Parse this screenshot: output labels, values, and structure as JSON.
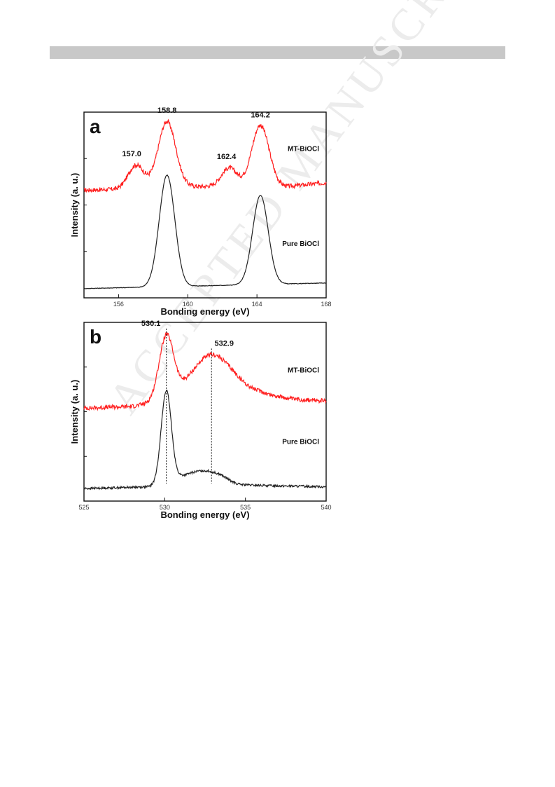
{
  "watermark": "ACCEPTED MANUSCRIPT",
  "chart_data": [
    {
      "panel_label": "a",
      "type": "line",
      "xlabel": "Bonding energy (eV)",
      "ylabel": "Intensity (a. u.)",
      "xlim": [
        154,
        168
      ],
      "xticks": [
        156,
        160,
        164,
        168
      ],
      "grid": false,
      "series": [
        {
          "name": "MT-BiOCl",
          "color": "#ff2020",
          "noise": 0.012,
          "baseline": [
            [
              154,
              0.58
            ],
            [
              156,
              0.585
            ],
            [
              157.6,
              0.6
            ],
            [
              160.4,
              0.6
            ],
            [
              163.5,
              0.6
            ],
            [
              165.8,
              0.6
            ],
            [
              168,
              0.62
            ]
          ],
          "peaks": [
            {
              "center": 157.0,
              "height": 0.12,
              "width": 0.45
            },
            {
              "center": 158.8,
              "height": 0.35,
              "width": 0.5
            },
            {
              "center": 162.4,
              "height": 0.1,
              "width": 0.45
            },
            {
              "center": 164.2,
              "height": 0.33,
              "width": 0.5
            }
          ]
        },
        {
          "name": "Pure BiOCl",
          "color": "#222222",
          "noise": 0.0015,
          "baseline": [
            [
              154,
              0.05
            ],
            [
              168,
              0.08
            ]
          ],
          "peaks": [
            {
              "center": 158.8,
              "height": 0.6,
              "width": 0.45
            },
            {
              "center": 164.2,
              "height": 0.48,
              "width": 0.45
            }
          ]
        }
      ],
      "annotations": [
        {
          "text": "157.0",
          "x": 157.0
        },
        {
          "text": "158.8",
          "x": 158.8
        },
        {
          "text": "162.4",
          "x": 162.4
        },
        {
          "text": "164.2",
          "x": 164.2
        }
      ]
    },
    {
      "panel_label": "b",
      "type": "line",
      "xlabel": "Bonding energy (eV)",
      "ylabel": "Intensity (a. u.)",
      "xlim": [
        525,
        540
      ],
      "xticks": [
        525,
        530,
        535,
        540
      ],
      "grid": false,
      "series": [
        {
          "name": "MT-BiOCl",
          "color": "#ff2020",
          "noise": 0.012,
          "baseline": [
            [
              525,
              0.52
            ],
            [
              528,
              0.53
            ],
            [
              529,
              0.545
            ],
            [
              533,
              0.6
            ],
            [
              536,
              0.6
            ],
            [
              538,
              0.57
            ],
            [
              540,
              0.56
            ]
          ],
          "peaks": [
            {
              "center": 530.1,
              "height": 0.35,
              "width": 0.45
            },
            {
              "center": 532.9,
              "height": 0.22,
              "width": 1.3
            }
          ]
        },
        {
          "name": "Pure BiOCl",
          "color": "#222222",
          "noise": 0.006,
          "baseline": [
            [
              525,
              0.07
            ],
            [
              529,
              0.08
            ],
            [
              530.5,
              0.1
            ],
            [
              531,
              0.12
            ],
            [
              533.5,
              0.12
            ],
            [
              534.5,
              0.09
            ],
            [
              540,
              0.08
            ]
          ],
          "peaks": [
            {
              "center": 530.1,
              "height": 0.52,
              "width": 0.32
            },
            {
              "center": 532.4,
              "height": 0.05,
              "width": 1.0
            }
          ]
        }
      ],
      "annotations": [
        {
          "text": "530.1",
          "x": 530.1
        },
        {
          "text": "532.9",
          "x": 532.9
        }
      ]
    }
  ]
}
